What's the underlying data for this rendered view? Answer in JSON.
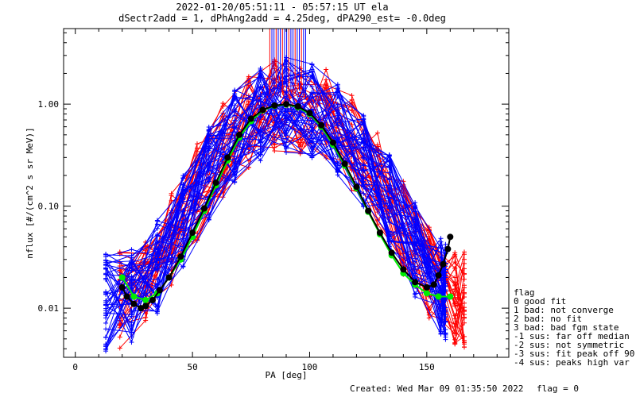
{
  "chart_data": {
    "type": "line",
    "title": "2022-01-20/05:51:11 - 05:57:15 UT ela",
    "subtitle": "dSectr2add = 1, dPhAng2add = 4.25deg, dPA290_est=  -0.0deg",
    "xlabel": "PA [deg]",
    "ylabel": "nflux [#/(cm^2 s sr MeV)]",
    "xlim": [
      -5,
      185
    ],
    "ylim": [
      0.0033,
      5.5
    ],
    "y_scale": "log",
    "grid": false,
    "x_ticks": [
      0,
      50,
      100,
      150
    ],
    "x_tick_labels": [
      "0",
      "50",
      "100",
      "150"
    ],
    "y_ticks": [
      0.01,
      0.1,
      1.0
    ],
    "y_tick_labels": [
      "0.01",
      "0.10",
      "1.00"
    ],
    "colors": {
      "red_traces": "#ff0000",
      "blue_traces": "#0000ff",
      "green_fit": "#00ee00",
      "black_fit": "#000000"
    },
    "series": [
      {
        "color": "#00ee00",
        "x": [
          20,
          25,
          30,
          35,
          40,
          45,
          50,
          55,
          60,
          65,
          70,
          75,
          80,
          85,
          90,
          95,
          100,
          105,
          110,
          115,
          120,
          125,
          130,
          135,
          140,
          145,
          150,
          155,
          160
        ],
        "y": [
          0.02,
          0.013,
          0.012,
          0.014,
          0.02,
          0.03,
          0.05,
          0.09,
          0.16,
          0.28,
          0.47,
          0.68,
          0.87,
          0.96,
          0.99,
          0.93,
          0.8,
          0.6,
          0.4,
          0.25,
          0.15,
          0.088,
          0.053,
          0.033,
          0.022,
          0.017,
          0.014,
          0.013,
          0.013
        ]
      },
      {
        "color": "#000000",
        "x": [
          20,
          22,
          25,
          28,
          30,
          33,
          36,
          40,
          45,
          50,
          55,
          60,
          65,
          70,
          75,
          80,
          85,
          90,
          95,
          100,
          105,
          110,
          115,
          120,
          125,
          130,
          135,
          140,
          145,
          150,
          153,
          155,
          157,
          159,
          160
        ],
        "y": [
          0.016,
          0.013,
          0.011,
          0.01,
          0.0105,
          0.012,
          0.015,
          0.02,
          0.032,
          0.055,
          0.095,
          0.17,
          0.3,
          0.5,
          0.72,
          0.88,
          0.97,
          1.0,
          0.95,
          0.82,
          0.62,
          0.42,
          0.26,
          0.155,
          0.09,
          0.055,
          0.035,
          0.024,
          0.018,
          0.016,
          0.017,
          0.021,
          0.027,
          0.038,
          0.05
        ]
      }
    ]
  },
  "legend": {
    "title": "flag",
    "items": [
      " 0 good fit",
      " 1 bad: not converge",
      " 2 bad: no fit",
      " 3 bad: bad fgm state",
      "-1 sus: far off median",
      "-2 sus: not symmetric",
      "-3 sus: fit peak off 90",
      "-4 sus: peaks high var"
    ]
  },
  "footer": {
    "created": "Created: Wed Mar 09 01:35:50 2022",
    "flag": "flag = 0"
  }
}
